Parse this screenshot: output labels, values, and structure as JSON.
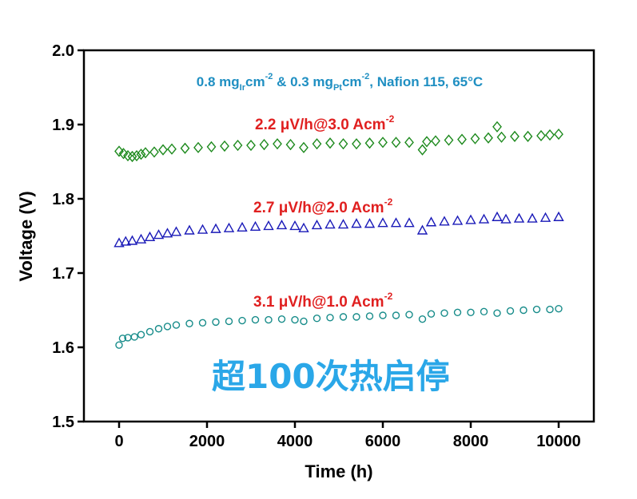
{
  "chart_data": {
    "type": "scatter",
    "title": "",
    "xlabel": "Time (h)",
    "ylabel": "Voltage (V)",
    "xlim": [
      -800,
      10800
    ],
    "ylim": [
      1.5,
      2.0
    ],
    "xticks": [
      0,
      2000,
      4000,
      6000,
      8000,
      10000
    ],
    "yticks": [
      1.5,
      1.6,
      1.7,
      1.8,
      1.9,
      2.0
    ],
    "xtick_labels": [
      "0",
      "2000",
      "4000",
      "6000",
      "8000",
      "10000"
    ],
    "ytick_labels": [
      "1.5",
      "1.6",
      "1.7",
      "1.8",
      "1.9",
      "2.0"
    ],
    "grid": false,
    "legend": "none",
    "condition_label": {
      "prefix": "0.8 mg",
      "sub1": "Ir",
      "mid1": "cm",
      "sup1": "-2",
      "mid2": " & 0.3 mg",
      "sub2": "Pt",
      "mid3": "cm",
      "sup2": "-2",
      "suffix": ", Nafion 115, 65°C"
    },
    "chinese_label": "超100次热启停",
    "series": [
      {
        "marker": "diamond",
        "color": "#1e8a1e",
        "annotation": {
          "text": "2.2 μV/h@3.0 Acm",
          "sup": "-2"
        },
        "points": [
          [
            0,
            1.864
          ],
          [
            100,
            1.861
          ],
          [
            200,
            1.858
          ],
          [
            300,
            1.857
          ],
          [
            400,
            1.858
          ],
          [
            500,
            1.86
          ],
          [
            600,
            1.862
          ],
          [
            800,
            1.863
          ],
          [
            1000,
            1.866
          ],
          [
            1200,
            1.867
          ],
          [
            1500,
            1.868
          ],
          [
            1800,
            1.869
          ],
          [
            2100,
            1.87
          ],
          [
            2400,
            1.871
          ],
          [
            2700,
            1.872
          ],
          [
            3000,
            1.872
          ],
          [
            3300,
            1.873
          ],
          [
            3600,
            1.874
          ],
          [
            3900,
            1.873
          ],
          [
            4200,
            1.869
          ],
          [
            4500,
            1.874
          ],
          [
            4800,
            1.875
          ],
          [
            5100,
            1.874
          ],
          [
            5400,
            1.874
          ],
          [
            5700,
            1.875
          ],
          [
            6000,
            1.876
          ],
          [
            6300,
            1.876
          ],
          [
            6600,
            1.876
          ],
          [
            6900,
            1.866
          ],
          [
            7000,
            1.877
          ],
          [
            7200,
            1.878
          ],
          [
            7500,
            1.879
          ],
          [
            7800,
            1.88
          ],
          [
            8100,
            1.881
          ],
          [
            8400,
            1.882
          ],
          [
            8600,
            1.897
          ],
          [
            8700,
            1.883
          ],
          [
            9000,
            1.884
          ],
          [
            9300,
            1.884
          ],
          [
            9600,
            1.885
          ],
          [
            9800,
            1.886
          ],
          [
            10000,
            1.887
          ]
        ]
      },
      {
        "marker": "triangle",
        "color": "#1a1ab8",
        "annotation": {
          "text": "2.7 μV/h@2.0 Acm",
          "sup": "-2"
        },
        "points": [
          [
            0,
            1.74
          ],
          [
            150,
            1.742
          ],
          [
            300,
            1.743
          ],
          [
            500,
            1.745
          ],
          [
            700,
            1.748
          ],
          [
            900,
            1.751
          ],
          [
            1100,
            1.753
          ],
          [
            1300,
            1.755
          ],
          [
            1600,
            1.757
          ],
          [
            1900,
            1.758
          ],
          [
            2200,
            1.759
          ],
          [
            2500,
            1.76
          ],
          [
            2800,
            1.761
          ],
          [
            3100,
            1.762
          ],
          [
            3400,
            1.763
          ],
          [
            3700,
            1.764
          ],
          [
            4000,
            1.763
          ],
          [
            4200,
            1.76
          ],
          [
            4500,
            1.764
          ],
          [
            4800,
            1.765
          ],
          [
            5100,
            1.765
          ],
          [
            5400,
            1.766
          ],
          [
            5700,
            1.766
          ],
          [
            6000,
            1.767
          ],
          [
            6300,
            1.767
          ],
          [
            6600,
            1.767
          ],
          [
            6900,
            1.757
          ],
          [
            7100,
            1.768
          ],
          [
            7400,
            1.769
          ],
          [
            7700,
            1.77
          ],
          [
            8000,
            1.771
          ],
          [
            8300,
            1.772
          ],
          [
            8600,
            1.775
          ],
          [
            8800,
            1.772
          ],
          [
            9100,
            1.773
          ],
          [
            9400,
            1.773
          ],
          [
            9700,
            1.774
          ],
          [
            10000,
            1.775
          ]
        ]
      },
      {
        "marker": "circle",
        "color": "#178c8a",
        "annotation": {
          "text": "3.1 μV/h@1.0 Acm",
          "sup": "-2"
        },
        "points": [
          [
            0,
            1.603
          ],
          [
            80,
            1.612
          ],
          [
            200,
            1.613
          ],
          [
            350,
            1.614
          ],
          [
            500,
            1.617
          ],
          [
            700,
            1.621
          ],
          [
            900,
            1.625
          ],
          [
            1100,
            1.628
          ],
          [
            1300,
            1.63
          ],
          [
            1600,
            1.632
          ],
          [
            1900,
            1.633
          ],
          [
            2200,
            1.634
          ],
          [
            2500,
            1.635
          ],
          [
            2800,
            1.636
          ],
          [
            3100,
            1.637
          ],
          [
            3400,
            1.637
          ],
          [
            3700,
            1.638
          ],
          [
            4000,
            1.637
          ],
          [
            4200,
            1.635
          ],
          [
            4500,
            1.639
          ],
          [
            4800,
            1.64
          ],
          [
            5100,
            1.641
          ],
          [
            5400,
            1.641
          ],
          [
            5700,
            1.642
          ],
          [
            6000,
            1.643
          ],
          [
            6300,
            1.643
          ],
          [
            6600,
            1.644
          ],
          [
            6900,
            1.638
          ],
          [
            7100,
            1.645
          ],
          [
            7400,
            1.646
          ],
          [
            7700,
            1.647
          ],
          [
            8000,
            1.647
          ],
          [
            8300,
            1.648
          ],
          [
            8600,
            1.646
          ],
          [
            8900,
            1.649
          ],
          [
            9200,
            1.65
          ],
          [
            9500,
            1.651
          ],
          [
            9800,
            1.651
          ],
          [
            10000,
            1.652
          ]
        ]
      }
    ]
  }
}
